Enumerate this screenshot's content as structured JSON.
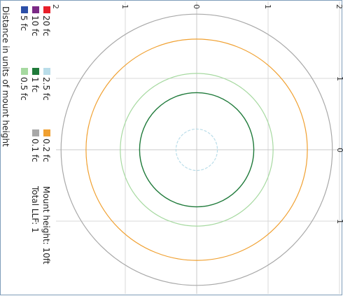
{
  "chart_data": {
    "type": "polar-contour",
    "orientation": "rotated 90 degrees clockwise",
    "xlim": [
      -2,
      2
    ],
    "ylim": [
      -2,
      2
    ],
    "x_ticks": [
      "2",
      "1",
      "0",
      "1",
      "2"
    ],
    "y_ticks": [
      "1",
      "0",
      "1"
    ],
    "contours": [
      {
        "label": "20 fc",
        "color": "#e8202a",
        "radius": null
      },
      {
        "label": "10 fc",
        "color": "#7b2a86",
        "radius": null
      },
      {
        "label": "5 fc",
        "color": "#2c4fa8",
        "radius": null
      },
      {
        "label": "2.5 fc",
        "color": "#b9dde9",
        "radius": 0.29
      },
      {
        "label": "1 fc",
        "color": "#1f7a3a",
        "radius": 0.8
      },
      {
        "label": "0.5 fc",
        "color": "#a6d9a0",
        "radius": 1.07
      },
      {
        "label": "0.2 fc",
        "color": "#f0a030",
        "radius": 1.55
      },
      {
        "label": "0.1 fc",
        "color": "#a8a8a8",
        "radius": 1.9
      }
    ],
    "xlabel": "Distance in units of mount height",
    "annotations": [
      "Mount height: 10ft",
      "Total LLF: 1"
    ],
    "legend_position": "left"
  },
  "colors": {
    "frame": "#7f9db9",
    "grid": "#d8d8d8",
    "axis": "#c8c8c8"
  }
}
